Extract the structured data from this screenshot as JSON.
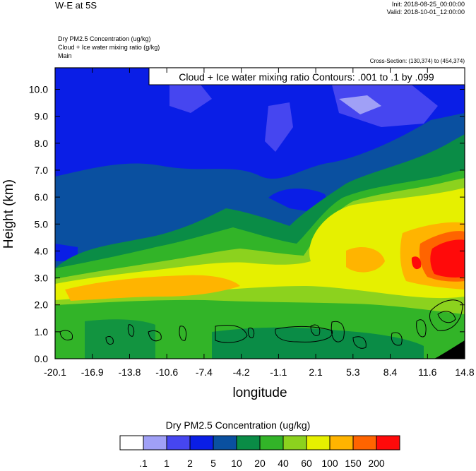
{
  "header": {
    "title": "W-E at 5S",
    "init": "Init: 2018-08-25_00:00:00",
    "valid": "Valid: 2018-10-01_12:00:00",
    "subtitle_lines": [
      "Dry PM2.5 Concentration   (ug/kg)",
      "Cloud + Ice water mixing ratio   (g/kg)",
      "Main"
    ],
    "cross_section": "Cross-Section: (130,374) to (454,374)"
  },
  "chart_data": {
    "type": "heatmap",
    "title": "W-E at 5S",
    "xlabel": "longitude",
    "ylabel": "Height (km)",
    "x_ticks": [
      "-20.1",
      "-16.9",
      "-13.8",
      "-10.6",
      "-7.4",
      "-4.2",
      "-1.1",
      "2.1",
      "5.3",
      "8.4",
      "11.6",
      "14.8"
    ],
    "y_ticks": [
      "0.0",
      "1.0",
      "2.0",
      "3.0",
      "4.0",
      "5.0",
      "6.0",
      "7.0",
      "8.0",
      "9.0",
      "10.0"
    ],
    "xlim": [
      -20.1,
      14.8
    ],
    "ylim": [
      0,
      10.8
    ],
    "contour_label": "Cloud + Ice water mixing ratio Contours: .001 to .1 by .099",
    "colorbar": {
      "title": "Dry PM2.5 Concentration  (ug/kg)",
      "levels": [
        ".1",
        "1",
        "2",
        "5",
        "10",
        "20",
        "40",
        "60",
        "100",
        "150",
        "200"
      ],
      "colors": [
        "#ffffff",
        "#a0a0f6",
        "#4646f0",
        "#0a1ee6",
        "#0a50a0",
        "#0a8c46",
        "#32b428",
        "#8cd21e",
        "#e6f000",
        "#ffb400",
        "#ff6400",
        "#ff0a0a"
      ]
    }
  }
}
